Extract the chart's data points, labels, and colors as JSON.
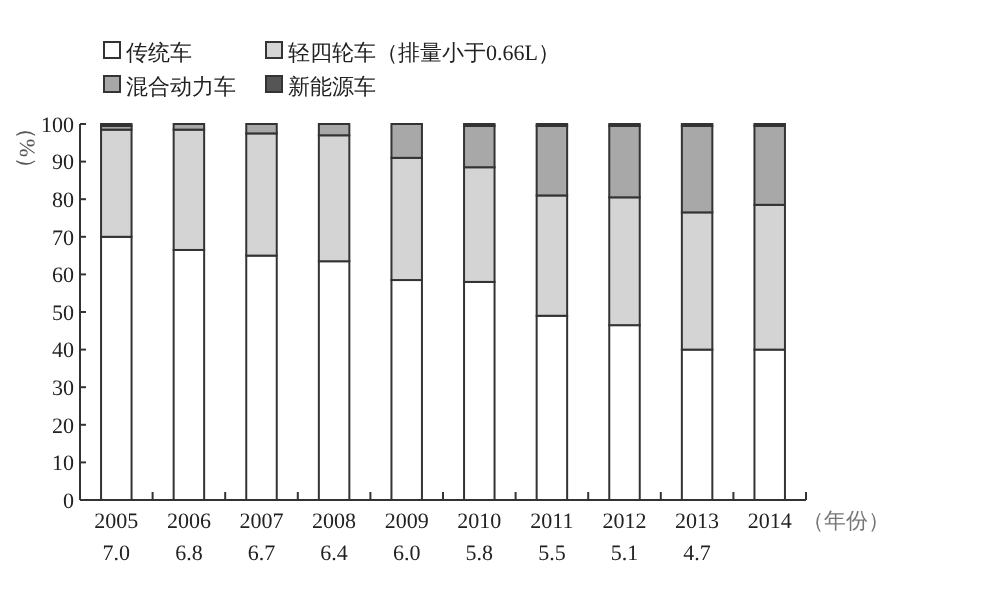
{
  "chart_data": {
    "type": "bar",
    "stacked": true,
    "ylabel": "（%）",
    "xlabel": "（年份）",
    "categories": [
      "2005\n7.0",
      "2006\n6.8",
      "2007\n6.7",
      "2008\n6.4",
      "2009\n6.0",
      "2010\n5.8",
      "2011\n5.5",
      "2012\n5.1",
      "2013\n4.7",
      "2014"
    ],
    "series": [
      {
        "name": "传统车",
        "color": "#ffffff",
        "values": [
          70,
          66.5,
          65,
          63.5,
          58.5,
          58,
          49,
          46.5,
          40,
          40
        ]
      },
      {
        "name": "轻四轮车（排量小于0.66L）",
        "color": "#d4d4d4",
        "values": [
          28.5,
          32,
          32.5,
          33.5,
          32.5,
          30.5,
          32,
          34,
          36.5,
          38.5
        ]
      },
      {
        "name": "混合动力车",
        "color": "#a8a8a8",
        "values": [
          1,
          1.5,
          2.5,
          3,
          9,
          11,
          18.5,
          19,
          23,
          21
        ]
      },
      {
        "name": "新能源车",
        "color": "#555555",
        "values": [
          0.5,
          0,
          0,
          0,
          0,
          0.5,
          0.5,
          0.5,
          0.5,
          0.5
        ]
      }
    ],
    "ylim": [
      0,
      100
    ],
    "yticks": [
      0,
      10,
      20,
      30,
      40,
      50,
      60,
      70,
      80,
      90,
      100
    ],
    "grid": false,
    "legend": "top left"
  }
}
